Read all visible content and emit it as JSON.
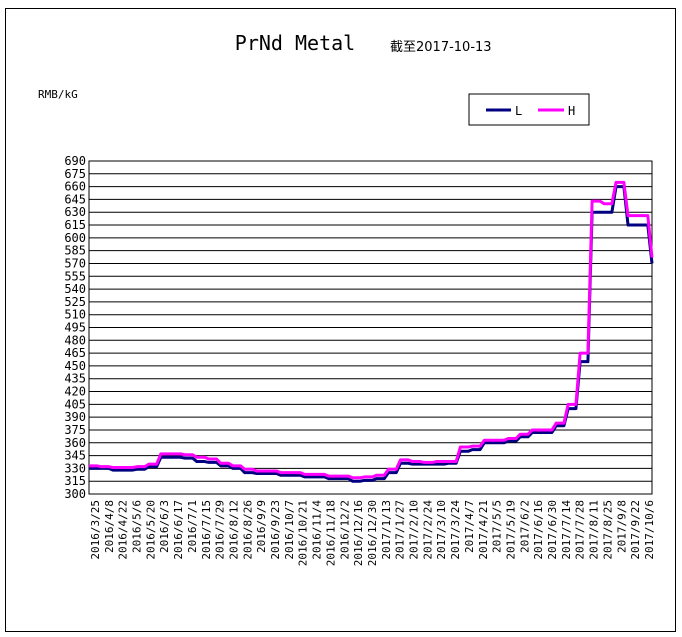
{
  "chart_data": {
    "type": "line",
    "title": "PrNd Metal",
    "subtitle": "截至2017-10-13",
    "ylabel": "RMB/kG",
    "ylim": [
      300,
      690
    ],
    "ytick_step": 15,
    "grid": true,
    "legend_position": "top-right",
    "x_tick_labels": [
      "2016/3/25",
      "2016/4/8",
      "2016/4/22",
      "2016/5/6",
      "2016/5/20",
      "2016/6/3",
      "2016/6/17",
      "2016/7/1",
      "2016/7/15",
      "2016/7/29",
      "2016/8/12",
      "2016/8/26",
      "2016/9/9",
      "2016/9/23",
      "2016/10/7",
      "2016/10/21",
      "2016/11/4",
      "2016/11/18",
      "2016/12/2",
      "2016/12/16",
      "2016/12/30",
      "2017/1/13",
      "2017/1/27",
      "2017/2/10",
      "2017/2/24",
      "2017/3/10",
      "2017/3/24",
      "2017/4/7",
      "2017/4/21",
      "2017/5/5",
      "2017/5/19",
      "2017/6/2",
      "2017/6/16",
      "2017/6/30",
      "2017/7/14",
      "2017/7/28",
      "2017/8/11",
      "2017/8/25",
      "2017/9/8",
      "2017/9/22",
      "2017/10/6"
    ],
    "series": [
      {
        "name": "L",
        "color": "#000080",
        "values": [
          330,
          330,
          328,
          328,
          329,
          332,
          343,
          343,
          342,
          338,
          337,
          333,
          330,
          325,
          324,
          324,
          322,
          322,
          320,
          320,
          318,
          318,
          315,
          316,
          318,
          325,
          336,
          335,
          335,
          335,
          336,
          350,
          352,
          360,
          360,
          362,
          367,
          372,
          372,
          380,
          400,
          455,
          630,
          630,
          660,
          615,
          615,
          570
        ]
      },
      {
        "name": "H",
        "color": "#ff00ff",
        "values": [
          333,
          332,
          331,
          331,
          332,
          335,
          347,
          347,
          346,
          343,
          341,
          336,
          333,
          329,
          327,
          327,
          325,
          325,
          323,
          323,
          321,
          321,
          319,
          320,
          322,
          329,
          340,
          338,
          337,
          338,
          338,
          355,
          356,
          363,
          363,
          365,
          370,
          375,
          375,
          383,
          405,
          465,
          643,
          640,
          665,
          626,
          626,
          577
        ]
      }
    ]
  }
}
